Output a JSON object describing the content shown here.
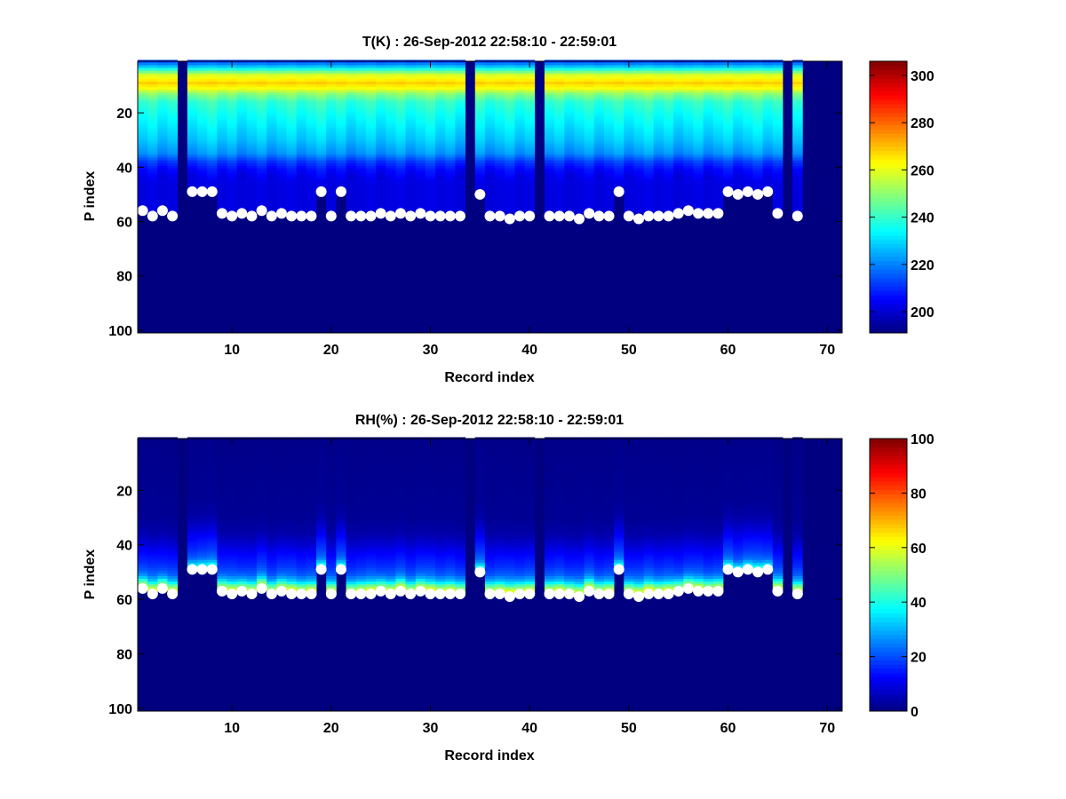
{
  "chart_data": [
    {
      "type": "heatmap",
      "title": "T(K) : 26-Sep-2012 22:58:10 - 22:59:01",
      "xlabel": "Record index",
      "ylabel": "P index",
      "xlim": [
        0.5,
        71.5
      ],
      "ylim": [
        1,
        101
      ],
      "y_reversed": true,
      "xticks": [
        10,
        20,
        30,
        40,
        50,
        60,
        70
      ],
      "yticks": [
        20,
        40,
        60,
        80,
        100
      ],
      "colormap": "jet",
      "clim": [
        191,
        306
      ],
      "colorbar_ticks": [
        200,
        220,
        240,
        260,
        280,
        300
      ],
      "fill_value": 191,
      "missing_records": [
        5,
        34,
        41,
        66,
        68,
        69,
        70,
        71
      ],
      "surface_p_index": [
        56,
        58,
        56,
        58,
        null,
        49,
        49,
        49,
        57,
        58,
        57,
        58,
        56,
        58,
        57,
        58,
        58,
        58,
        49,
        58,
        49,
        58,
        58,
        58,
        57,
        58,
        57,
        58,
        57,
        58,
        58,
        58,
        58,
        null,
        50,
        58,
        58,
        59,
        58,
        58,
        null,
        58,
        58,
        58,
        59,
        57,
        58,
        58,
        49,
        58,
        59,
        58,
        58,
        58,
        57,
        56,
        57,
        57,
        57,
        49,
        50,
        49,
        50,
        49,
        57,
        null,
        58,
        null,
        null,
        null,
        null
      ],
      "profile_levels": [
        1,
        3,
        6,
        9,
        11,
        13,
        16,
        20,
        25,
        30,
        35,
        38,
        41,
        44,
        47,
        50,
        53,
        56,
        60
      ],
      "profile_values": [
        212,
        228,
        258,
        268,
        262,
        250,
        240,
        236,
        232,
        228,
        222,
        212,
        206,
        203,
        202,
        202,
        202,
        202,
        191
      ]
    },
    {
      "type": "heatmap",
      "title": "RH(%) : 26-Sep-2012 22:58:10 - 22:59:01",
      "xlabel": "Record index",
      "ylabel": "P index",
      "xlim": [
        0.5,
        71.5
      ],
      "ylim": [
        1,
        101
      ],
      "y_reversed": true,
      "xticks": [
        10,
        20,
        30,
        40,
        50,
        60,
        70
      ],
      "yticks": [
        20,
        40,
        60,
        80,
        100
      ],
      "colormap": "jet",
      "clim": [
        0,
        100
      ],
      "colorbar_ticks": [
        0,
        20,
        40,
        60,
        80,
        100
      ],
      "fill_value": 0,
      "missing_records": [
        5,
        34,
        41,
        66,
        68,
        69,
        70,
        71
      ],
      "surface_p_index": [
        56,
        58,
        56,
        58,
        null,
        49,
        49,
        49,
        57,
        58,
        57,
        58,
        56,
        58,
        57,
        58,
        58,
        58,
        49,
        58,
        49,
        58,
        58,
        58,
        57,
        58,
        57,
        58,
        57,
        58,
        58,
        58,
        58,
        null,
        50,
        58,
        58,
        59,
        58,
        58,
        null,
        58,
        58,
        58,
        59,
        57,
        58,
        58,
        49,
        58,
        59,
        58,
        58,
        58,
        57,
        56,
        57,
        57,
        57,
        49,
        50,
        49,
        50,
        49,
        57,
        null,
        58,
        null,
        null,
        null,
        null
      ],
      "profile_levels": [
        1,
        30,
        36,
        40,
        44,
        48,
        51,
        53,
        55,
        57,
        60
      ],
      "profile_values": [
        1,
        2,
        4,
        8,
        13,
        17,
        22,
        30,
        45,
        58,
        0
      ]
    }
  ]
}
